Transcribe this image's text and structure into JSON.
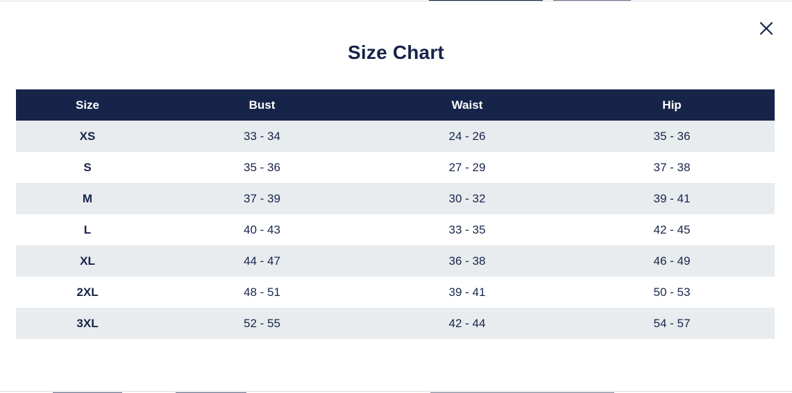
{
  "modal": {
    "title": "Size Chart",
    "close_icon": "close-icon"
  },
  "colors": {
    "header_bg": "#17244a",
    "text": "#17244a",
    "stripe": "#e8ecef"
  },
  "table": {
    "columns": [
      "Size",
      "Bust",
      "Waist",
      "Hip"
    ],
    "rows": [
      [
        "XS",
        "33 - 34",
        "24 - 26",
        "35 - 36"
      ],
      [
        "S",
        "35 - 36",
        "27 - 29",
        "37 - 38"
      ],
      [
        "M",
        "37 - 39",
        "30 - 32",
        "39 - 41"
      ],
      [
        "L",
        "40 - 43",
        "33 - 35",
        "42 - 45"
      ],
      [
        "XL",
        "44 - 47",
        "36 - 38",
        "46 - 49"
      ],
      [
        "2XL",
        "48 - 51",
        "39 - 41",
        "50 - 53"
      ],
      [
        "3XL",
        "52 - 55",
        "42 - 44",
        "54 - 57"
      ]
    ]
  }
}
